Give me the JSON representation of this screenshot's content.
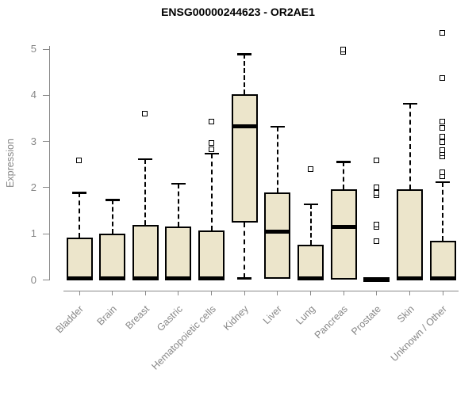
{
  "page": {
    "background": "#ffffff"
  },
  "chart_data": {
    "type": "boxplot",
    "title": "ENSG00000244623 - OR2AE1",
    "ylabel": "Expression",
    "xlabel": "",
    "ylim": [
      0,
      5.45
    ],
    "yticks": [
      "0",
      "1",
      "2",
      "3",
      "4",
      "5"
    ],
    "grid": false,
    "legend": "none",
    "x_label_rotation_deg": 45,
    "categories": [
      "Bladder",
      "Brain",
      "Breast",
      "Gastric",
      "Hematopoietic cells",
      "Kidney",
      "Liver",
      "Lung",
      "Pancreas",
      "Prostate",
      "Skin",
      "Unknown / Other"
    ],
    "series": [
      {
        "category": "Bladder",
        "whisker_low": 0,
        "q1": 0,
        "median": 0.03,
        "q3": 0.91,
        "whisker_high": 1.89,
        "outliers": [
          2.58
        ]
      },
      {
        "category": "Brain",
        "whisker_low": 0,
        "q1": 0,
        "median": 0.03,
        "q3": 1.01,
        "whisker_high": 1.74,
        "outliers": []
      },
      {
        "category": "Breast",
        "whisker_low": 0,
        "q1": 0,
        "median": 0.03,
        "q3": 1.19,
        "whisker_high": 2.62,
        "outliers": [
          3.6
        ]
      },
      {
        "category": "Gastric",
        "whisker_low": 0,
        "q1": 0,
        "median": 0.03,
        "q3": 1.16,
        "whisker_high": 2.09,
        "outliers": []
      },
      {
        "category": "Hematopoietic cells",
        "whisker_low": 0,
        "q1": 0,
        "median": 0.03,
        "q3": 1.08,
        "whisker_high": 2.74,
        "outliers": [
          2.82,
          2.96,
          3.43
        ]
      },
      {
        "category": "Kidney",
        "whisker_low": 0.04,
        "q1": 1.25,
        "median": 3.33,
        "q3": 4.03,
        "whisker_high": 4.89,
        "outliers": []
      },
      {
        "category": "Liver",
        "whisker_low": 0.02,
        "q1": 0.02,
        "median": 1.04,
        "q3": 1.89,
        "whisker_high": 3.32,
        "outliers": []
      },
      {
        "category": "Lung",
        "whisker_low": 0,
        "q1": 0,
        "median": 0.03,
        "q3": 0.76,
        "whisker_high": 1.64,
        "outliers": [
          2.4
        ]
      },
      {
        "category": "Pancreas",
        "whisker_low": 0.01,
        "q1": 0.01,
        "median": 1.15,
        "q3": 1.96,
        "whisker_high": 2.56,
        "outliers": [
          4.93,
          4.98
        ]
      },
      {
        "category": "Prostate",
        "whisker_low": 0.02,
        "q1": 0.02,
        "median": 0.02,
        "q3": 0.02,
        "whisker_high": 0.02,
        "outliers": [
          0.84,
          1.14,
          1.19,
          1.82,
          1.87,
          2.0,
          2.59
        ]
      },
      {
        "category": "Skin",
        "whisker_low": 0,
        "q1": 0,
        "median": 0.03,
        "q3": 1.97,
        "whisker_high": 3.82,
        "outliers": []
      },
      {
        "category": "Unknown / Other",
        "whisker_low": 0,
        "q1": 0,
        "median": 0.03,
        "q3": 0.85,
        "whisker_high": 2.12,
        "outliers": [
          2.24,
          2.32,
          2.66,
          2.73,
          2.8,
          2.97,
          3.1,
          3.28,
          3.42,
          4.37,
          5.35
        ]
      }
    ],
    "colors": {
      "box_fill": "#ECE5CB",
      "box_border": "#000000",
      "median": "#000000",
      "whisker": "#000000",
      "outlier": "#000000",
      "axis": "#888888",
      "tick_label": "#878787",
      "title": "#000000",
      "background": "#ffffff"
    }
  }
}
